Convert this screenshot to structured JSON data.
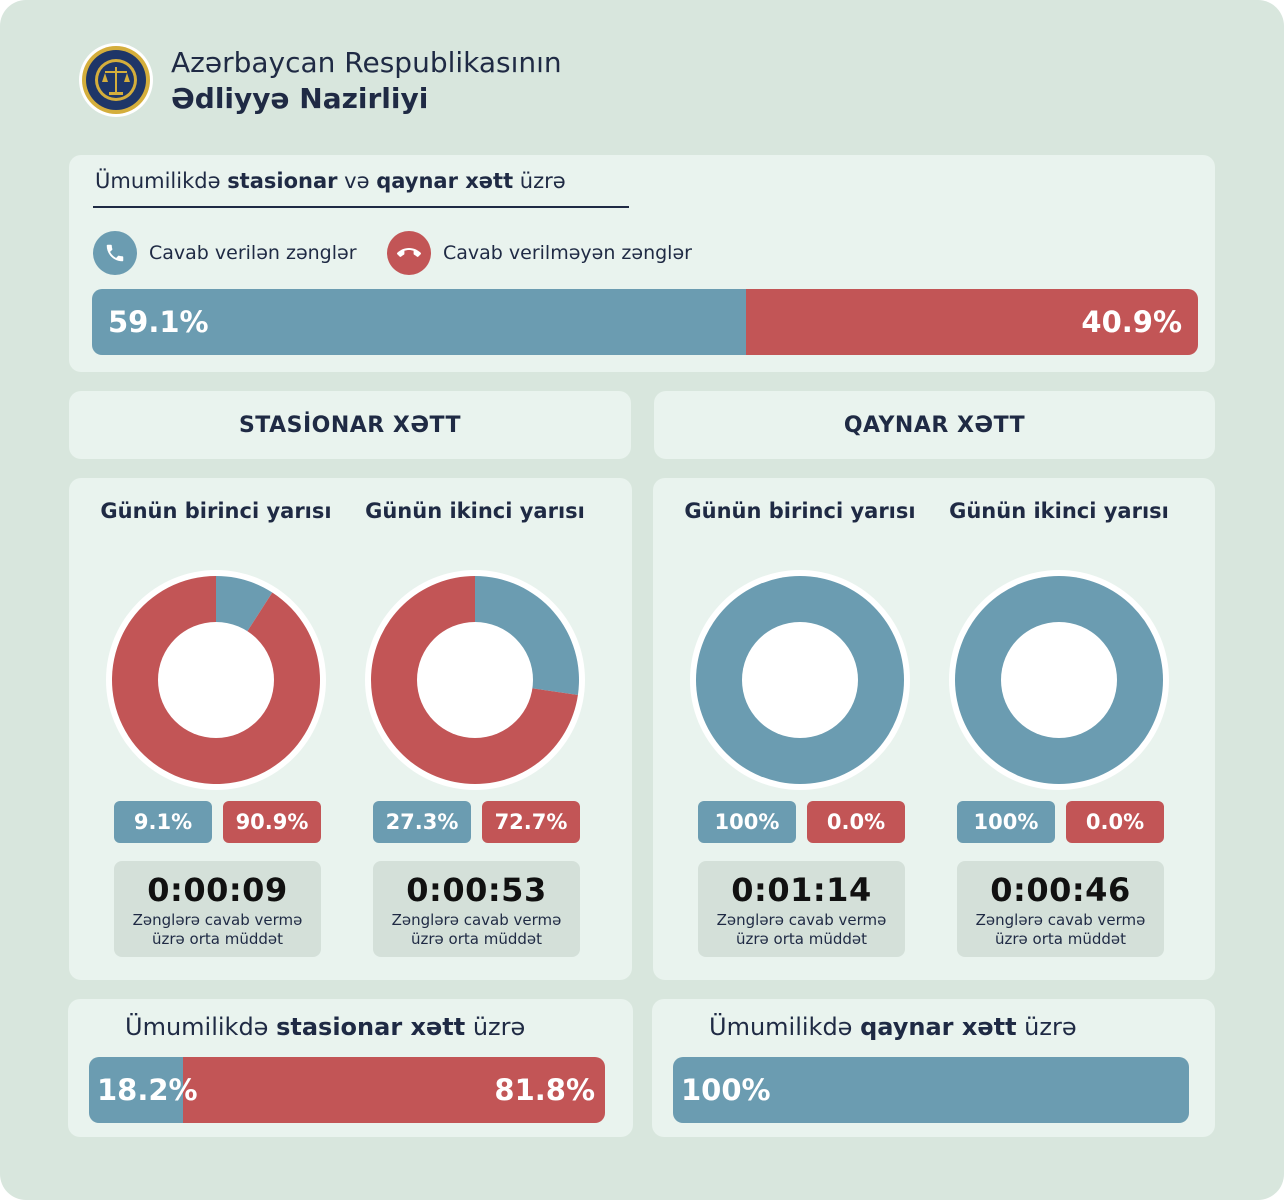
{
  "header": {
    "line1": "Azərbaycan Respublikasının",
    "line2": "Ədliyyə Nazirliyi",
    "seal_icon": "ministry-of-justice-seal-icon"
  },
  "colors": {
    "answered": "#6b9cb1",
    "unanswered": "#c25556",
    "panel": "#e9f3ee",
    "background": "#d8e6dd",
    "text": "#1f2a44"
  },
  "overall": {
    "title_pre": "Ümumilikdə ",
    "title_b1": "stasionar",
    "title_mid": " və ",
    "title_b2": "qaynar xətt",
    "title_post": " üzrə",
    "legend_answered": "Cavab verilən zənglər",
    "legend_unanswered": "Cavab verilməyən zənglər",
    "legend_answered_icon": "phone-icon",
    "legend_unanswered_icon": "hang-up-icon",
    "answered_label": "59.1%",
    "unanswered_label": "40.9%"
  },
  "stationary": {
    "heading": "STASİONAR XƏTT",
    "first_half": {
      "title": "Günün birinci yarısı",
      "answered_label": "9.1%",
      "unanswered_label": "90.9%",
      "time": "0:00:09",
      "caption": "Zənglərə cavab vermə üzrə orta müddət"
    },
    "second_half": {
      "title": "Günün ikinci yarısı",
      "answered_label": "27.3%",
      "unanswered_label": "72.7%",
      "time": "0:00:53",
      "caption": "Zənglərə cavab vermə üzrə orta müddət"
    },
    "total_pre": "Ümumilikdə ",
    "total_b": "stasionar xətt",
    "total_post": " üzrə",
    "total_answered_label": "18.2%",
    "total_unanswered_label": "81.8%"
  },
  "hotline": {
    "heading": "QAYNAR XƏTT",
    "first_half": {
      "title": "Günün birinci yarısı",
      "answered_label": "100%",
      "unanswered_label": "0.0%",
      "time": "0:01:14",
      "caption": "Zənglərə cavab vermə üzrə orta müddət"
    },
    "second_half": {
      "title": "Günün ikinci yarısı",
      "answered_label": "100%",
      "unanswered_label": "0.0%",
      "time": "0:00:46",
      "caption": "Zənglərə cavab vermə üzrə orta müddət"
    },
    "total_pre": "Ümumilikdə ",
    "total_b": "qaynar xətt",
    "total_post": " üzrə",
    "total_answered_label": "100%"
  },
  "chart_data": [
    {
      "type": "bar",
      "orientation": "horizontal-stacked",
      "categories": [
        "Cavab verilən zənglər",
        "Cavab verilməyən zənglər"
      ],
      "values": [
        59.1,
        40.9
      ],
      "unit": "%"
    },
    {
      "type": "pie",
      "style": "donut",
      "title": "Günün birinci yarısı",
      "group": "STASİONAR XƏTT",
      "categories": [
        "Cavab verilən zənglər",
        "Cavab verilməyən zənglər"
      ],
      "values": [
        9.1,
        90.9
      ]
    },
    {
      "type": "pie",
      "style": "donut",
      "title": "Günün ikinci yarısı",
      "group": "STASİONAR XƏTT",
      "categories": [
        "Cavab verilən zənglər",
        "Cavab verilməyən zənglər"
      ],
      "values": [
        27.3,
        72.7
      ]
    },
    {
      "type": "pie",
      "style": "donut",
      "title": "Günün birinci yarısı",
      "group": "QAYNAR XƏTT",
      "categories": [
        "Cavab verilən zənglər",
        "Cavab verilməyən zənglər"
      ],
      "values": [
        100,
        0.0
      ]
    },
    {
      "type": "pie",
      "style": "donut",
      "title": "Günün ikinci yarısı",
      "group": "QAYNAR XƏTT",
      "categories": [
        "Cavab verilən zənglər",
        "Cavab verilməyən zənglər"
      ],
      "values": [
        100,
        0.0
      ]
    },
    {
      "type": "bar",
      "orientation": "horizontal-stacked",
      "title": "Ümumilikdə stasionar xətt üzrə",
      "categories": [
        "Cavab verilən zənglər",
        "Cavab verilməyən zənglər"
      ],
      "values": [
        18.2,
        81.8
      ],
      "unit": "%"
    },
    {
      "type": "bar",
      "orientation": "horizontal-stacked",
      "title": "Ümumilikdə qaynar xətt üzrə",
      "categories": [
        "Cavab verilən zənglər"
      ],
      "values": [
        100
      ],
      "unit": "%"
    }
  ]
}
